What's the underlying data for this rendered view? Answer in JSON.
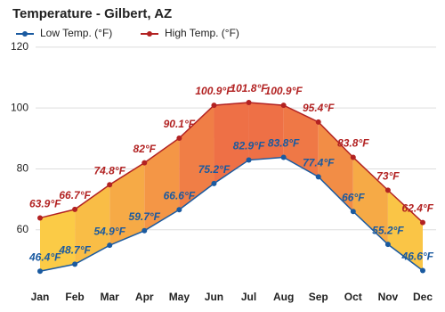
{
  "chart_data": {
    "type": "line",
    "title": "Temperature - Gilbert, AZ",
    "categories": [
      "Jan",
      "Feb",
      "Mar",
      "Apr",
      "May",
      "Jun",
      "Jul",
      "Aug",
      "Sep",
      "Oct",
      "Nov",
      "Dec"
    ],
    "series": [
      {
        "name": "Low Temp. (°F)",
        "color": "#1a5aa0",
        "values": [
          46.4,
          48.7,
          54.9,
          59.7,
          66.6,
          75.2,
          82.9,
          83.8,
          77.4,
          66,
          55.2,
          46.6
        ],
        "value_labels": [
          "46.4°F",
          "48.7°F",
          "54.9°F",
          "59.7°F",
          "66.6°F",
          "75.2°F",
          "82.9°F",
          "83.8°F",
          "77.4°F",
          "66°F",
          "55.2°F",
          "46.6°F"
        ]
      },
      {
        "name": "High Temp. (°F)",
        "color": "#b22222",
        "values": [
          63.9,
          66.7,
          74.8,
          82,
          90.1,
          100.9,
          101.8,
          100.9,
          95.4,
          83.8,
          73,
          62.4
        ],
        "value_labels": [
          "63.9°F",
          "66.7°F",
          "74.8°F",
          "82°F",
          "90.1°F",
          "100.9°F",
          "101.8°F",
          "100.9°F",
          "95.4°F",
          "83.8°F",
          "73°F",
          "62.4°F"
        ]
      }
    ],
    "ylim": [
      45,
      122
    ],
    "yticks": [
      60,
      80,
      100,
      120
    ],
    "grid": true
  }
}
